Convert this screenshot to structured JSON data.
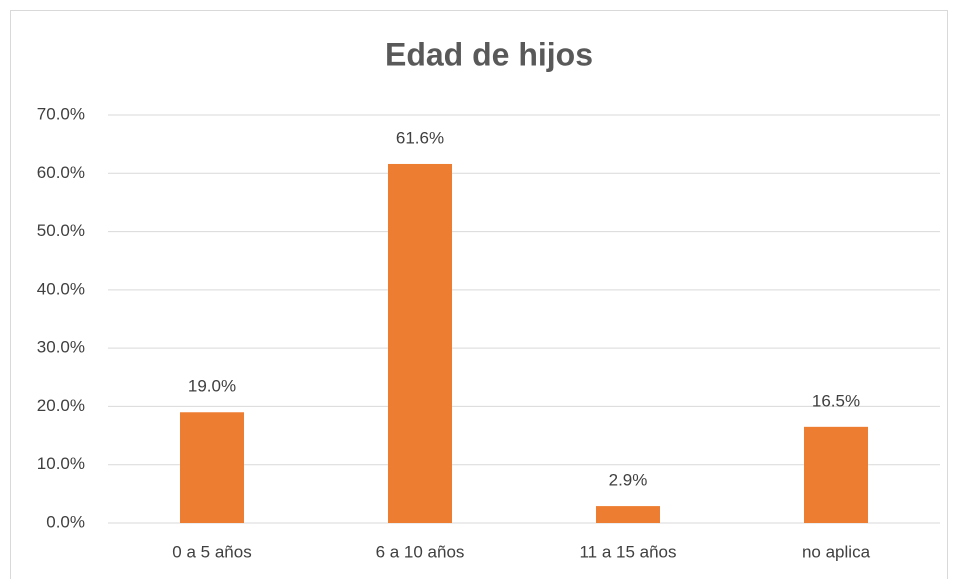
{
  "chart_data": {
    "type": "bar",
    "title": "Edad de hijos",
    "categories": [
      "0 a 5 años",
      "6 a 10 años",
      "11 a 15 años",
      "no aplica"
    ],
    "values": [
      19.0,
      61.6,
      2.9,
      16.5
    ],
    "value_labels": [
      "19.0%",
      "61.6%",
      "2.9%",
      "16.5%"
    ],
    "color": "#ed7d31",
    "ylim": [
      0,
      70
    ],
    "yticks": [
      {
        "value": 0,
        "label": "0.0%"
      },
      {
        "value": 10,
        "label": "10.0%"
      },
      {
        "value": 20,
        "label": "20.0%"
      },
      {
        "value": 30,
        "label": "30.0%"
      },
      {
        "value": 40,
        "label": "40.0%"
      },
      {
        "value": 50,
        "label": "50.0%"
      },
      {
        "value": 60,
        "label": "60.0%"
      },
      {
        "value": 70,
        "label": "70.0%"
      }
    ],
    "grid": true
  }
}
